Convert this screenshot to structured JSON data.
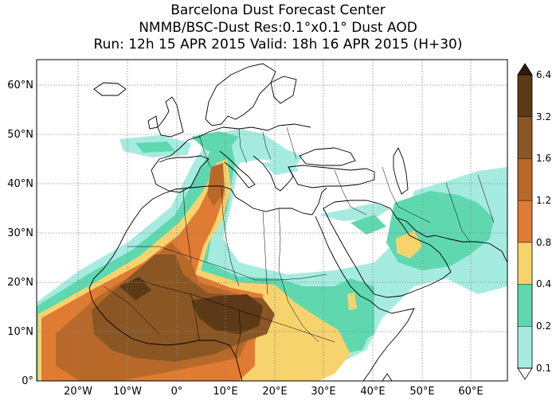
{
  "header": {
    "title_line1": "Barcelona Dust Forecast Center",
    "title_line2": "NMMB/BSC-Dust   Res:0.1°x0.1°   Dust AOD",
    "title_line3": "Run: 12h 15 APR 2015   Valid: 18h 16 APR 2015 (H+30)"
  },
  "map": {
    "lat_labels": [
      "60°N",
      "50°N",
      "40°N",
      "30°N",
      "20°N",
      "10°N",
      "0°"
    ],
    "lon_labels": [
      "20°W",
      "10°W",
      "0°",
      "10°E",
      "20°E",
      "30°E",
      "40°E",
      "50°E",
      "60°E"
    ],
    "gridlines": true,
    "lon_range": [
      -28,
      68
    ],
    "lat_range": [
      0,
      65
    ]
  },
  "colorbar": {
    "labels": [
      "0.1",
      "0.2",
      "0.4",
      "0.8",
      "1.2",
      "1.6",
      "3.2",
      "6.4"
    ],
    "bins": [
      {
        "min": 0.1,
        "max": 0.2,
        "color": "#a6ebe0"
      },
      {
        "min": 0.2,
        "max": 0.4,
        "color": "#5fd8b0"
      },
      {
        "min": 0.4,
        "max": 0.8,
        "color": "#f7d36e"
      },
      {
        "min": 0.8,
        "max": 1.2,
        "color": "#e07b34"
      },
      {
        "min": 1.2,
        "max": 1.6,
        "color": "#b8692a"
      },
      {
        "min": 1.6,
        "max": 3.2,
        "color": "#8a5624"
      },
      {
        "min": 3.2,
        "max": 6.4,
        "color": "#5c3a17"
      }
    ],
    "extend_min_color": "#ffffff",
    "extend_max_color": "#2e1a08"
  }
}
